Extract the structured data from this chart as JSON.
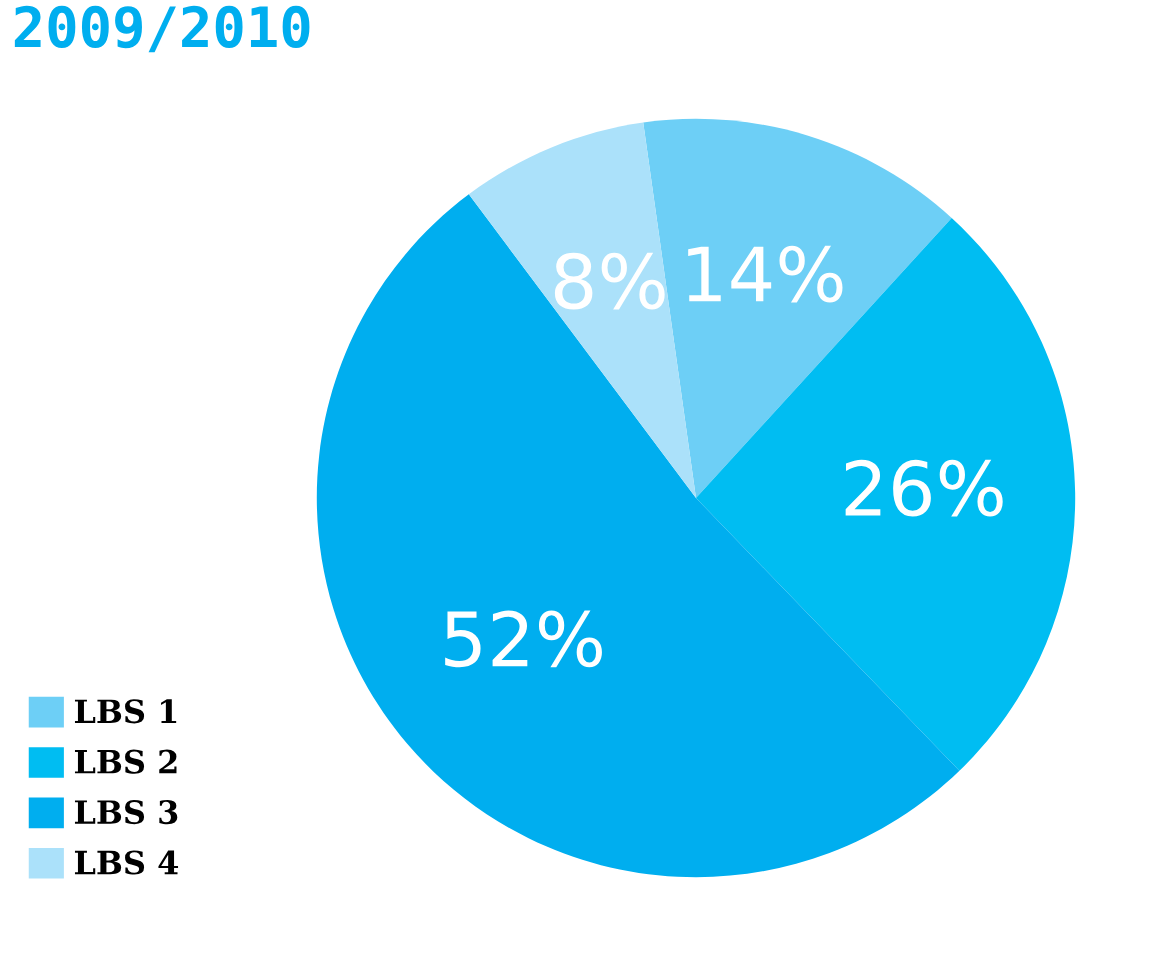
{
  "chart_data": {
    "type": "pie",
    "title": "2009/2010",
    "categories": [
      "LBS 1",
      "LBS 2",
      "LBS 3",
      "LBS 4"
    ],
    "values": [
      14,
      26,
      52,
      8
    ],
    "colors": [
      "#6dcff6",
      "#00bdf2",
      "#00aeef",
      "#abe1fa"
    ],
    "value_labels": [
      "14%",
      "26%",
      "52%",
      "8%"
    ],
    "legend": "bottom left"
  }
}
